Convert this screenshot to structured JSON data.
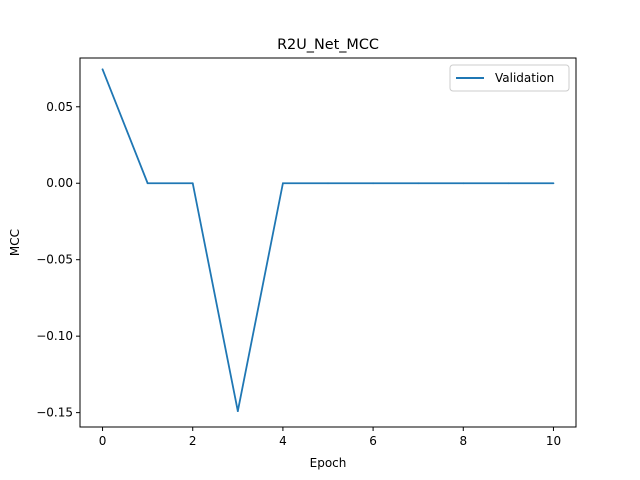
{
  "chart_data": {
    "type": "line",
    "title": "R2U_Net_MCC",
    "xlabel": "Epoch",
    "ylabel": "MCC",
    "xlim": [
      -0.5,
      10.5
    ],
    "ylim": [
      -0.1594,
      0.0819
    ],
    "x_ticks": [
      0,
      2,
      4,
      6,
      8,
      10
    ],
    "x_tick_labels": [
      "0",
      "2",
      "4",
      "6",
      "8",
      "10"
    ],
    "y_ticks": [
      0.05,
      0.0,
      -0.05,
      -0.1,
      -0.15
    ],
    "y_tick_labels": [
      "0.05",
      "0.00",
      "−0.05",
      "−0.10",
      "−0.15"
    ],
    "grid": false,
    "legend_position": "upper-right",
    "series": [
      {
        "name": "Validation",
        "color": "#1f77b4",
        "x": [
          0,
          1,
          2,
          3,
          4,
          5,
          6,
          7,
          8,
          9,
          10
        ],
        "y": [
          0.0745,
          0.0,
          0.0,
          -0.149,
          0.0,
          0.0,
          0.0,
          0.0,
          0.0,
          0.0,
          0.0
        ]
      }
    ]
  }
}
